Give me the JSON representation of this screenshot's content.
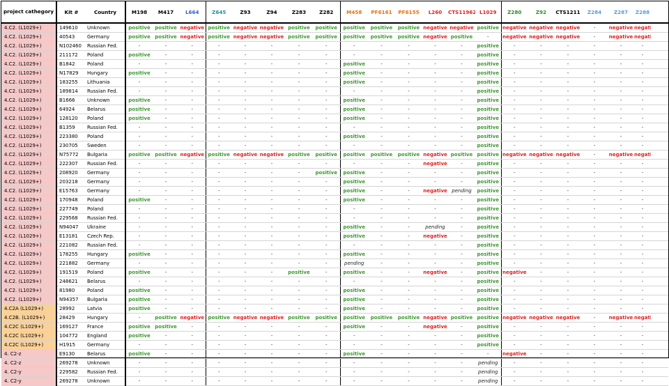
{
  "header": {
    "category": "project cathegory",
    "kit": "Kit #",
    "country": "Country"
  },
  "marker_colors": {
    "black": "#000000",
    "blue": "#2f5fcf",
    "teal": "#1f8f9a",
    "orange": "#e8700a",
    "red": "#e02020",
    "green": "#2c8a2c",
    "lightblue": "#5b9bd5"
  },
  "markers": [
    {
      "label": "M198",
      "color": "black"
    },
    {
      "label": "M417",
      "color": "black"
    },
    {
      "label": "L664",
      "color": "blue"
    },
    {
      "label": "Z645",
      "color": "teal"
    },
    {
      "label": "Z93",
      "color": "black"
    },
    {
      "label": "Z94",
      "color": "black"
    },
    {
      "label": "Z283",
      "color": "black"
    },
    {
      "label": "Z282",
      "color": "black"
    },
    {
      "label": "M458",
      "color": "orange"
    },
    {
      "label": "PF6161",
      "color": "orange"
    },
    {
      "label": "PF6155",
      "color": "orange"
    },
    {
      "label": "L260",
      "color": "red"
    },
    {
      "label": "CTS11962",
      "color": "red"
    },
    {
      "label": "L1029",
      "color": "red"
    },
    {
      "label": "Z280",
      "color": "green"
    },
    {
      "label": "Z92",
      "color": "green"
    },
    {
      "label": "CTS1211",
      "color": "black"
    },
    {
      "label": "Z284",
      "color": "lightblue"
    },
    {
      "label": "Z287",
      "color": "lightblue"
    },
    {
      "label": "Z288",
      "color": "lightblue"
    }
  ],
  "rows": [
    {
      "cat": "4.C2. (L1029+)",
      "hl": false,
      "kit": "149610",
      "country": "Unknown",
      "v": [
        "positive",
        "positive",
        "negative",
        "positive",
        "negative",
        "negative",
        "positive",
        "positive",
        "positive",
        "positive",
        "positive",
        "negative",
        "negative",
        "positive",
        "negative",
        "negative",
        "negative",
        "-",
        "negative",
        "negative"
      ]
    },
    {
      "cat": "4.C2. (L1029+)",
      "hl": false,
      "kit": "40543",
      "country": "Germany",
      "v": [
        "positive",
        "positive",
        "negative",
        "positive",
        "negative",
        "negative",
        "positive",
        "positive",
        "positive",
        "positive",
        "positive",
        "negative",
        "positive",
        "-",
        "negative",
        "negative",
        "negative",
        "-",
        "negative",
        "negative"
      ]
    },
    {
      "cat": "4.C2. (L1029+)",
      "hl": false,
      "kit": "N102460",
      "country": "Russian Fed.",
      "v": [
        "-",
        "-",
        "-",
        "-",
        "-",
        "-",
        "-",
        "-",
        "-",
        "-",
        "-",
        "-",
        "-",
        "positive",
        "-",
        "-",
        "-",
        "-",
        "-",
        "-"
      ]
    },
    {
      "cat": "4.C2. (L1029+)",
      "hl": false,
      "kit": "211172",
      "country": "Poland",
      "v": [
        "positive",
        "-",
        "-",
        "-",
        "-",
        "-",
        "-",
        "-",
        "-",
        "-",
        "-",
        "-",
        "-",
        "positive",
        "-",
        "-",
        "-",
        "-",
        "-",
        "-"
      ]
    },
    {
      "cat": "4.C2. (L1029+)",
      "hl": false,
      "kit": "B1842",
      "country": "Poland",
      "v": [
        "-",
        "-",
        "-",
        "-",
        "-",
        "-",
        "-",
        "-",
        "positive",
        "-",
        "-",
        "-",
        "-",
        "positive",
        "-",
        "-",
        "-",
        "-",
        "-",
        "-"
      ]
    },
    {
      "cat": "4.C2. (L1029+)",
      "hl": false,
      "kit": "N17829",
      "country": "Hungary",
      "v": [
        "positive",
        "-",
        "-",
        "-",
        "-",
        "-",
        "-",
        "-",
        "positive",
        "-",
        "-",
        "-",
        "-",
        "positive",
        "-",
        "-",
        "-",
        "-",
        "-",
        "-"
      ]
    },
    {
      "cat": "4.C2. (L1029+)",
      "hl": false,
      "kit": "183255",
      "country": "Lithuania",
      "v": [
        "-",
        "-",
        "-",
        "-",
        "-",
        "-",
        "-",
        "-",
        "positive",
        "-",
        "-",
        "-",
        "-",
        "positive",
        "-",
        "-",
        "-",
        "-",
        "-",
        "-"
      ]
    },
    {
      "cat": "4.C2. (L1029+)",
      "hl": false,
      "kit": "189814",
      "country": "Russian Fed.",
      "v": [
        "-",
        "-",
        "-",
        "-",
        "-",
        "-",
        "-",
        "-",
        "-",
        "-",
        "-",
        "-",
        "-",
        "positive",
        "-",
        "-",
        "-",
        "-",
        "-",
        "-"
      ]
    },
    {
      "cat": "4.C2. (L1029+)",
      "hl": false,
      "kit": "B1666",
      "country": "Unknown",
      "v": [
        "positive",
        "-",
        "-",
        "-",
        "-",
        "-",
        "-",
        "-",
        "positive",
        "-",
        "-",
        "-",
        "-",
        "positive",
        "-",
        "-",
        "-",
        "-",
        "-",
        "-"
      ]
    },
    {
      "cat": "4.C2. (L1029+)",
      "hl": false,
      "kit": "64924",
      "country": "Belarus",
      "v": [
        "positive",
        "-",
        "-",
        "-",
        "-",
        "-",
        "-",
        "-",
        "positive",
        "-",
        "-",
        "-",
        "-",
        "positive",
        "-",
        "-",
        "-",
        "-",
        "-",
        "-"
      ]
    },
    {
      "cat": "4.C2. (L1029+)",
      "hl": false,
      "kit": "128120",
      "country": "Poland",
      "v": [
        "positive",
        "-",
        "-",
        "-",
        "-",
        "-",
        "-",
        "-",
        "positive",
        "-",
        "-",
        "-",
        "-",
        "positive",
        "-",
        "-",
        "-",
        "-",
        "-",
        "-"
      ]
    },
    {
      "cat": "4.C2. (L1029+)",
      "hl": false,
      "kit": "B1359",
      "country": "Russian Fed.",
      "v": [
        "-",
        "-",
        "-",
        "-",
        "-",
        "-",
        "-",
        "-",
        "-",
        "-",
        "-",
        "-",
        "-",
        "positive",
        "-",
        "-",
        "-",
        "-",
        "-",
        "-"
      ]
    },
    {
      "cat": "4.C2. (L1029+)",
      "hl": false,
      "kit": "223380",
      "country": "Poland",
      "v": [
        "-",
        "-",
        "-",
        "-",
        "-",
        "-",
        "-",
        "-",
        "positive",
        "-",
        "-",
        "-",
        "-",
        "positive",
        "-",
        "-",
        "-",
        "-",
        "-",
        "-"
      ]
    },
    {
      "cat": "4.C2. (L1029+)",
      "hl": false,
      "kit": "230705",
      "country": "Sweden",
      "v": [
        "-",
        "-",
        "-",
        "-",
        "-",
        "-",
        "-",
        "-",
        "-",
        "-",
        "-",
        "-",
        "-",
        "positive",
        "-",
        "-",
        "-",
        "-",
        "-",
        "-"
      ]
    },
    {
      "cat": "4.C2. (L1029+)",
      "hl": false,
      "kit": "N75772",
      "country": "Bulgaria",
      "v": [
        "positive",
        "positive",
        "negative",
        "positive",
        "negative",
        "negative",
        "positive",
        "positive",
        "positive",
        "positive",
        "positive",
        "negative",
        "positive",
        "positive",
        "negative",
        "negative",
        "negative",
        "-",
        "negative",
        "negative"
      ]
    },
    {
      "cat": "4.C2. (L1029+)",
      "hl": false,
      "kit": "222307",
      "country": "Russian Fed.",
      "v": [
        "-",
        "-",
        "-",
        "-",
        "-",
        "-",
        "-",
        "-",
        "-",
        "-",
        "-",
        "negative",
        "-",
        "positive",
        "-",
        "-",
        "-",
        "-",
        "-",
        "-"
      ]
    },
    {
      "cat": "4.C2. (L1029+)",
      "hl": false,
      "kit": "208920",
      "country": "Germany",
      "v": [
        "-",
        "-",
        "-",
        "-",
        "-",
        "-",
        "-",
        "positive",
        "positive",
        "-",
        "-",
        "-",
        "-",
        "positive",
        "-",
        "-",
        "-",
        "-",
        "-",
        "-"
      ]
    },
    {
      "cat": "4.C2. (L1029+)",
      "hl": false,
      "kit": "203218",
      "country": "Germany",
      "v": [
        "-",
        "-",
        "-",
        "-",
        "-",
        "-",
        "-",
        "-",
        "positive",
        "-",
        "-",
        "-",
        "-",
        "positive",
        "-",
        "-",
        "-",
        "-",
        "-",
        "-"
      ]
    },
    {
      "cat": "4.C2. (L1029+)",
      "hl": false,
      "kit": "E15763",
      "country": "Germany",
      "v": [
        "-",
        "-",
        "-",
        "-",
        "-",
        "-",
        "-",
        "-",
        "positive",
        "-",
        "-",
        "negative",
        "pending",
        "positive",
        "-",
        "-",
        "-",
        "-",
        "-",
        "-"
      ]
    },
    {
      "cat": "4.C2. (L1029+)",
      "hl": false,
      "kit": "170948",
      "country": "Poland",
      "v": [
        "positive",
        "-",
        "-",
        "-",
        "-",
        "-",
        "-",
        "-",
        "positive",
        "-",
        "-",
        "-",
        "-",
        "positive",
        "-",
        "-",
        "-",
        "-",
        "-",
        "-"
      ]
    },
    {
      "cat": "4.C2. (L1029+)",
      "hl": false,
      "kit": "227749",
      "country": "Poland",
      "v": [
        "-",
        "-",
        "-",
        "-",
        "-",
        "-",
        "-",
        "-",
        "-",
        "-",
        "-",
        "-",
        "-",
        "positive",
        "-",
        "-",
        "-",
        "-",
        "-",
        "-"
      ]
    },
    {
      "cat": "4.C2. (L1029+)",
      "hl": false,
      "kit": "229568",
      "country": "Russian Fed.",
      "v": [
        "-",
        "-",
        "-",
        "-",
        "-",
        "-",
        "-",
        "-",
        "-",
        "-",
        "-",
        "-",
        "-",
        "positive",
        "-",
        "-",
        "-",
        "-",
        "-",
        "-"
      ]
    },
    {
      "cat": "4.C2. (L1029+)",
      "hl": false,
      "kit": "N94047",
      "country": "Ukraine",
      "v": [
        "-",
        "-",
        "-",
        "-",
        "-",
        "-",
        "-",
        "-",
        "positive",
        "-",
        "-",
        "pending",
        "-",
        "positive",
        "-",
        "-",
        "-",
        "-",
        "-",
        "-"
      ]
    },
    {
      "cat": "4.C2. (L1029+)",
      "hl": false,
      "kit": "E13181",
      "country": "Czech Rep.",
      "v": [
        "-",
        "-",
        "-",
        "-",
        "-",
        "-",
        "-",
        "-",
        "positive",
        "-",
        "-",
        "negative",
        "-",
        "positive",
        "-",
        "-",
        "-",
        "-",
        "-",
        "-"
      ]
    },
    {
      "cat": "4.C2. (L1029+)",
      "hl": false,
      "kit": "221082",
      "country": "Russian Fed.",
      "v": [
        "-",
        "-",
        "-",
        "-",
        "-",
        "-",
        "-",
        "-",
        "-",
        "-",
        "-",
        "-",
        "-",
        "positive",
        "-",
        "-",
        "-",
        "-",
        "-",
        "-"
      ]
    },
    {
      "cat": "4.C2. (L1029+)",
      "hl": false,
      "kit": "178255",
      "country": "Hungary",
      "v": [
        "positive",
        "-",
        "-",
        "-",
        "-",
        "-",
        "-",
        "-",
        "positive",
        "-",
        "-",
        "-",
        "-",
        "positive",
        "-",
        "-",
        "-",
        "-",
        "-",
        "-"
      ]
    },
    {
      "cat": "4.C2. (L1029+)",
      "hl": false,
      "kit": "221882",
      "country": "Germany",
      "v": [
        "-",
        "-",
        "-",
        "-",
        "-",
        "-",
        "-",
        "-",
        "pending",
        "-",
        "-",
        "-",
        "-",
        "positive",
        "-",
        "-",
        "-",
        "-",
        "-",
        "-"
      ]
    },
    {
      "cat": "4.C2. (L1029+)",
      "hl": false,
      "kit": "191519",
      "country": "Poland",
      "v": [
        "positive",
        "-",
        "-",
        "-",
        "-",
        "-",
        "positive",
        "-",
        "positive",
        "-",
        "-",
        "negative",
        "-",
        "positive",
        "negative",
        "-",
        "-",
        "-",
        "-",
        "-"
      ]
    },
    {
      "cat": "4.C2. (L1029+)",
      "hl": false,
      "kit": "248621",
      "country": "Belarus",
      "v": [
        "-",
        "-",
        "-",
        "-",
        "-",
        "-",
        "-",
        "-",
        "-",
        "-",
        "-",
        "-",
        "-",
        "positive",
        "-",
        "-",
        "-",
        "-",
        "-",
        "-"
      ]
    },
    {
      "cat": "4.C2. (L1029+)",
      "hl": false,
      "kit": "81980",
      "country": "Poland",
      "v": [
        "positive",
        "-",
        "-",
        "-",
        "-",
        "-",
        "-",
        "-",
        "positive",
        "-",
        "-",
        "-",
        "-",
        "positive",
        "-",
        "-",
        "-",
        "-",
        "-",
        "-"
      ]
    },
    {
      "cat": "4.C2. (L1029+)",
      "hl": false,
      "kit": "N94357",
      "country": "Bulgaria",
      "v": [
        "positive",
        "-",
        "-",
        "-",
        "-",
        "-",
        "-",
        "-",
        "positive",
        "-",
        "-",
        "-",
        "-",
        "positive",
        "-",
        "-",
        "-",
        "-",
        "-",
        "-"
      ]
    },
    {
      "cat": "4.C2A (L1029+)",
      "hl": true,
      "kit": "28992",
      "country": "Latvia",
      "v": [
        "positive",
        "-",
        "-",
        "-",
        "-",
        "-",
        "-",
        "-",
        "positive",
        "-",
        "-",
        "-",
        "-",
        "positive",
        "-",
        "-",
        "-",
        "-",
        "-",
        "-"
      ]
    },
    {
      "cat": "4.C2B. (L1029+)",
      "hl": true,
      "kit": "28429",
      "country": "Hungary",
      "v": [
        "-",
        "positive",
        "negative",
        "positive",
        "negative",
        "negative",
        "positive",
        "positive",
        "positive",
        "positive",
        "positive",
        "negative",
        "positive",
        "positive",
        "negative",
        "negative",
        "negative",
        "-",
        "negative",
        "negative"
      ]
    },
    {
      "cat": "4.C2C (L1029+)",
      "hl": true,
      "kit": "169127",
      "country": "France",
      "v": [
        "positive",
        "positive",
        "-",
        "-",
        "-",
        "-",
        "-",
        "-",
        "positive",
        "-",
        "-",
        "negative",
        "-",
        "positive",
        "-",
        "-",
        "-",
        "-",
        "-",
        "-"
      ]
    },
    {
      "cat": "4.C2C (L1029+)",
      "hl": true,
      "kit": "104772",
      "country": "England",
      "v": [
        "positive",
        "-",
        "-",
        "-",
        "-",
        "-",
        "-",
        "-",
        "-",
        "-",
        "-",
        "-",
        "-",
        "positive",
        "-",
        "-",
        "-",
        "-",
        "-",
        "-"
      ]
    },
    {
      "cat": "4.C2C (L1029+)",
      "hl": true,
      "kit": "H1915",
      "country": "Germany",
      "v": [
        "-",
        "-",
        "-",
        "-",
        "-",
        "-",
        "-",
        "-",
        "-",
        "-",
        "-",
        "-",
        "-",
        "positive",
        "-",
        "-",
        "-",
        "-",
        "-",
        "-"
      ]
    },
    {
      "cat": "4. C2-z",
      "hl": false,
      "kit": "E9130",
      "country": "Belarus",
      "v": [
        "positive",
        "-",
        "-",
        "-",
        "-",
        "-",
        "-",
        "-",
        "positive",
        "-",
        "-",
        "-",
        "-",
        "-",
        "negative",
        "-",
        "-",
        "-",
        "-",
        "-"
      ]
    },
    {
      "cat": "4. C2-z",
      "hl": false,
      "kit": "269278",
      "country": "Unknown",
      "v": [
        "-",
        "-",
        "-",
        "-",
        "-",
        "-",
        "-",
        "-",
        "-",
        "-",
        "-",
        "-",
        "-",
        "pending",
        "-",
        "-",
        "-",
        "-",
        "-",
        "-"
      ]
    },
    {
      "cat": "4. C2-y",
      "hl": false,
      "kit": "229582",
      "country": "Russian Fed.",
      "v": [
        "-",
        "-",
        "-",
        "-",
        "-",
        "-",
        "-",
        "-",
        "-",
        "-",
        "-",
        "-",
        "-",
        "pending",
        "-",
        "-",
        "-",
        "-",
        "-",
        "-"
      ]
    },
    {
      "cat": "4. C2-y",
      "hl": false,
      "kit": "269278",
      "country": "Unknown",
      "v": [
        "-",
        "-",
        "-",
        "-",
        "-",
        "-",
        "-",
        "-",
        "-",
        "-",
        "-",
        "-",
        "-",
        "pending",
        "-",
        "-",
        "-",
        "-",
        "-",
        "-"
      ]
    }
  ]
}
